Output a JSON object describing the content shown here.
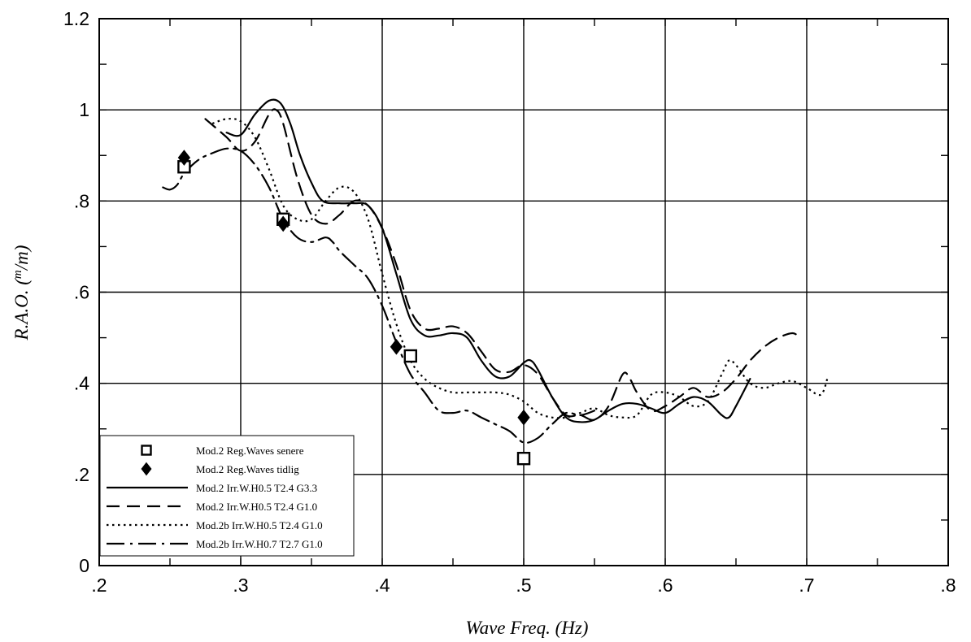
{
  "chart_data": {
    "type": "line",
    "xlabel": "Wave Freq. (Hz)",
    "ylabel": {
      "prefix": "R.A.O. (",
      "sup": "m",
      "suffix": "/m)"
    },
    "xlim": [
      0.2,
      0.8
    ],
    "ylim": [
      0,
      1.2
    ],
    "grid": true,
    "legend_position": "bottom-left",
    "x_ticks": [
      {
        "value": 0.2,
        "label": ".2"
      },
      {
        "value": 0.3,
        "label": ".3"
      },
      {
        "value": 0.4,
        "label": ".4"
      },
      {
        "value": 0.5,
        "label": ".5"
      },
      {
        "value": 0.6,
        "label": ".6"
      },
      {
        "value": 0.7,
        "label": ".7"
      },
      {
        "value": 0.8,
        "label": ".8"
      }
    ],
    "y_ticks": [
      {
        "value": 0,
        "label": "0"
      },
      {
        "value": 0.2,
        "label": ".2"
      },
      {
        "value": 0.4,
        "label": ".4"
      },
      {
        "value": 0.6,
        "label": ".6"
      },
      {
        "value": 0.8,
        "label": ".8"
      },
      {
        "value": 1.0,
        "label": "1"
      },
      {
        "value": 1.2,
        "label": "1.2"
      }
    ],
    "series": [
      {
        "name": "Mod.2 Reg.Waves senere",
        "kind": "marker",
        "marker": "square-open",
        "points": [
          [
            0.26,
            0.875
          ],
          [
            0.33,
            0.76
          ],
          [
            0.42,
            0.46
          ],
          [
            0.5,
            0.235
          ]
        ]
      },
      {
        "name": "Mod.2 Reg.Waves tidlig",
        "kind": "marker",
        "marker": "diamond-filled",
        "points": [
          [
            0.26,
            0.895
          ],
          [
            0.33,
            0.75
          ],
          [
            0.41,
            0.48
          ],
          [
            0.5,
            0.325
          ]
        ]
      },
      {
        "name": "Mod.2 Irr.W.H0.5 T2.4 G3.3",
        "kind": "line",
        "dash": "solid",
        "points": [
          [
            0.29,
            0.95
          ],
          [
            0.3,
            0.945
          ],
          [
            0.31,
            0.99
          ],
          [
            0.32,
            1.02
          ],
          [
            0.328,
            1.015
          ],
          [
            0.335,
            0.97
          ],
          [
            0.342,
            0.9
          ],
          [
            0.35,
            0.84
          ],
          [
            0.358,
            0.8
          ],
          [
            0.37,
            0.795
          ],
          [
            0.38,
            0.795
          ],
          [
            0.39,
            0.79
          ],
          [
            0.4,
            0.74
          ],
          [
            0.41,
            0.64
          ],
          [
            0.42,
            0.54
          ],
          [
            0.43,
            0.505
          ],
          [
            0.44,
            0.505
          ],
          [
            0.45,
            0.51
          ],
          [
            0.46,
            0.5
          ],
          [
            0.47,
            0.45
          ],
          [
            0.48,
            0.415
          ],
          [
            0.49,
            0.415
          ],
          [
            0.5,
            0.445
          ],
          [
            0.505,
            0.45
          ],
          [
            0.51,
            0.43
          ],
          [
            0.52,
            0.37
          ],
          [
            0.53,
            0.325
          ],
          [
            0.54,
            0.315
          ],
          [
            0.55,
            0.32
          ],
          [
            0.56,
            0.34
          ],
          [
            0.57,
            0.355
          ],
          [
            0.58,
            0.355
          ],
          [
            0.59,
            0.345
          ],
          [
            0.6,
            0.335
          ],
          [
            0.61,
            0.355
          ],
          [
            0.62,
            0.37
          ],
          [
            0.63,
            0.36
          ],
          [
            0.64,
            0.33
          ],
          [
            0.645,
            0.325
          ],
          [
            0.65,
            0.35
          ],
          [
            0.66,
            0.41
          ]
        ]
      },
      {
        "name": "Mod.2 Irr.W.H0.5 T2.4 G1.0",
        "kind": "line",
        "dash": "dashed",
        "points": [
          [
            0.275,
            0.98
          ],
          [
            0.29,
            0.94
          ],
          [
            0.3,
            0.91
          ],
          [
            0.31,
            0.93
          ],
          [
            0.32,
            0.99
          ],
          [
            0.325,
            1.0
          ],
          [
            0.33,
            0.97
          ],
          [
            0.34,
            0.85
          ],
          [
            0.35,
            0.77
          ],
          [
            0.36,
            0.75
          ],
          [
            0.37,
            0.77
          ],
          [
            0.38,
            0.8
          ],
          [
            0.39,
            0.79
          ],
          [
            0.4,
            0.74
          ],
          [
            0.41,
            0.66
          ],
          [
            0.42,
            0.56
          ],
          [
            0.43,
            0.52
          ],
          [
            0.44,
            0.52
          ],
          [
            0.45,
            0.525
          ],
          [
            0.46,
            0.51
          ],
          [
            0.47,
            0.47
          ],
          [
            0.48,
            0.43
          ],
          [
            0.49,
            0.425
          ],
          [
            0.5,
            0.44
          ],
          [
            0.51,
            0.42
          ],
          [
            0.52,
            0.37
          ],
          [
            0.53,
            0.33
          ],
          [
            0.54,
            0.33
          ],
          [
            0.55,
            0.32
          ],
          [
            0.56,
            0.35
          ],
          [
            0.57,
            0.42
          ],
          [
            0.575,
            0.41
          ],
          [
            0.58,
            0.38
          ],
          [
            0.59,
            0.34
          ],
          [
            0.6,
            0.35
          ],
          [
            0.61,
            0.37
          ],
          [
            0.62,
            0.39
          ],
          [
            0.63,
            0.37
          ],
          [
            0.64,
            0.38
          ],
          [
            0.65,
            0.41
          ],
          [
            0.66,
            0.45
          ],
          [
            0.67,
            0.48
          ],
          [
            0.68,
            0.5
          ],
          [
            0.69,
            0.51
          ],
          [
            0.695,
            0.5
          ]
        ]
      },
      {
        "name": "Mod.2b Irr.W.H0.5 T2.4 G1.0",
        "kind": "line",
        "dash": "dotted",
        "points": [
          [
            0.28,
            0.97
          ],
          [
            0.29,
            0.98
          ],
          [
            0.3,
            0.975
          ],
          [
            0.31,
            0.94
          ],
          [
            0.32,
            0.87
          ],
          [
            0.33,
            0.79
          ],
          [
            0.34,
            0.76
          ],
          [
            0.35,
            0.76
          ],
          [
            0.36,
            0.8
          ],
          [
            0.37,
            0.83
          ],
          [
            0.38,
            0.82
          ],
          [
            0.39,
            0.76
          ],
          [
            0.4,
            0.64
          ],
          [
            0.41,
            0.53
          ],
          [
            0.42,
            0.45
          ],
          [
            0.43,
            0.41
          ],
          [
            0.44,
            0.39
          ],
          [
            0.45,
            0.38
          ],
          [
            0.46,
            0.38
          ],
          [
            0.47,
            0.38
          ],
          [
            0.48,
            0.38
          ],
          [
            0.49,
            0.375
          ],
          [
            0.5,
            0.36
          ],
          [
            0.51,
            0.335
          ],
          [
            0.52,
            0.325
          ],
          [
            0.53,
            0.325
          ],
          [
            0.54,
            0.335
          ],
          [
            0.55,
            0.345
          ],
          [
            0.56,
            0.33
          ],
          [
            0.57,
            0.325
          ],
          [
            0.58,
            0.33
          ],
          [
            0.59,
            0.375
          ],
          [
            0.6,
            0.38
          ],
          [
            0.61,
            0.37
          ],
          [
            0.62,
            0.35
          ],
          [
            0.63,
            0.36
          ],
          [
            0.64,
            0.42
          ],
          [
            0.645,
            0.45
          ],
          [
            0.65,
            0.44
          ],
          [
            0.66,
            0.4
          ],
          [
            0.67,
            0.39
          ],
          [
            0.68,
            0.4
          ],
          [
            0.69,
            0.405
          ],
          [
            0.7,
            0.39
          ],
          [
            0.71,
            0.375
          ],
          [
            0.715,
            0.415
          ]
        ]
      },
      {
        "name": "Mod.2b Irr.W.H0.7 T2.7 G1.0",
        "kind": "line",
        "dash": "dashdot",
        "points": [
          [
            0.245,
            0.83
          ],
          [
            0.25,
            0.825
          ],
          [
            0.255,
            0.835
          ],
          [
            0.26,
            0.86
          ],
          [
            0.27,
            0.89
          ],
          [
            0.28,
            0.905
          ],
          [
            0.29,
            0.915
          ],
          [
            0.3,
            0.91
          ],
          [
            0.31,
            0.88
          ],
          [
            0.32,
            0.83
          ],
          [
            0.33,
            0.76
          ],
          [
            0.34,
            0.72
          ],
          [
            0.35,
            0.71
          ],
          [
            0.36,
            0.72
          ],
          [
            0.365,
            0.71
          ],
          [
            0.37,
            0.69
          ],
          [
            0.38,
            0.66
          ],
          [
            0.39,
            0.63
          ],
          [
            0.4,
            0.57
          ],
          [
            0.41,
            0.49
          ],
          [
            0.42,
            0.42
          ],
          [
            0.43,
            0.38
          ],
          [
            0.44,
            0.34
          ],
          [
            0.45,
            0.335
          ],
          [
            0.46,
            0.34
          ],
          [
            0.47,
            0.325
          ],
          [
            0.48,
            0.31
          ],
          [
            0.49,
            0.295
          ],
          [
            0.5,
            0.27
          ],
          [
            0.51,
            0.28
          ],
          [
            0.52,
            0.31
          ],
          [
            0.53,
            0.335
          ],
          [
            0.54,
            0.33
          ],
          [
            0.55,
            0.34
          ]
        ]
      }
    ]
  }
}
